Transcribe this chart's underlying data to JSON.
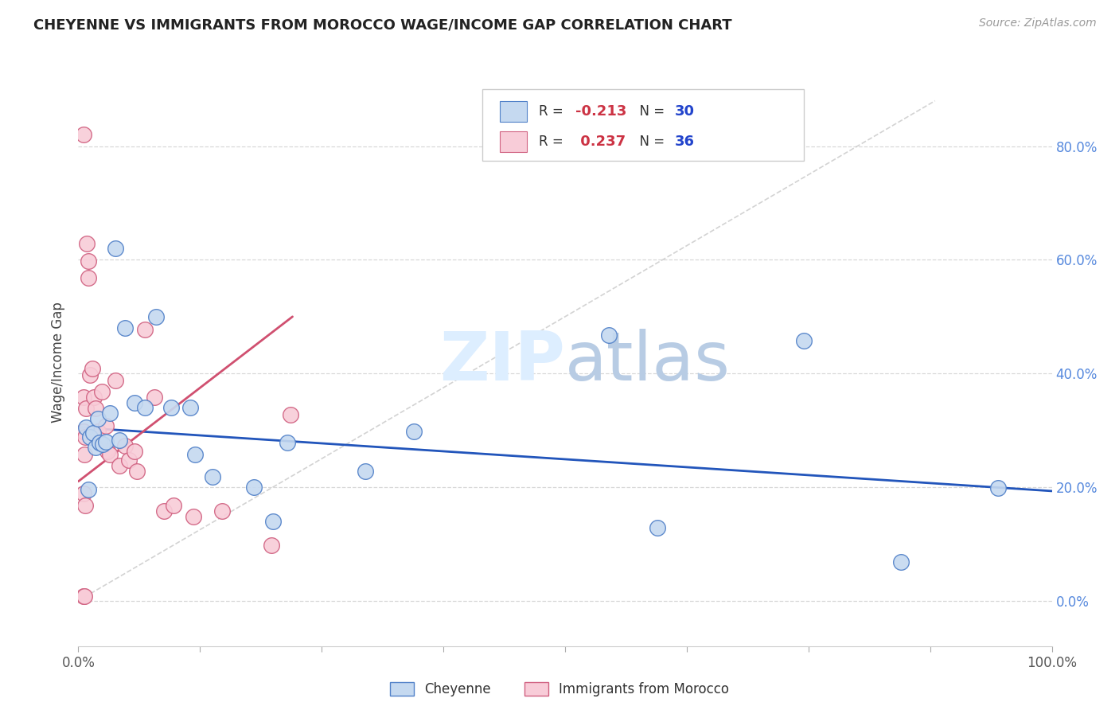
{
  "title": "CHEYENNE VS IMMIGRANTS FROM MOROCCO WAGE/INCOME GAP CORRELATION CHART",
  "source": "Source: ZipAtlas.com",
  "ylabel": "Wage/Income Gap",
  "legend_r_cheyenne": "-0.213",
  "legend_n_cheyenne": "30",
  "legend_r_morocco": "0.237",
  "legend_n_morocco": "36",
  "cheyenne_color": "#c5d9f0",
  "morocco_color": "#f8ccd8",
  "cheyenne_edge_color": "#5080c8",
  "morocco_edge_color": "#d06080",
  "cheyenne_line_color": "#2255bb",
  "morocco_line_color": "#d05070",
  "diagonal_color": "#c8c8c8",
  "bg_color": "#ffffff",
  "grid_color": "#d8d8d8",
  "watermark_color": "#ddeeff",
  "xlim": [
    0.0,
    1.0
  ],
  "ylim": [
    -0.08,
    0.92
  ],
  "ytick_positions": [
    0.0,
    0.2,
    0.4,
    0.6,
    0.8
  ],
  "ytick_labels_right": [
    "0.0%",
    "20.0%",
    "40.0%",
    "60.0%",
    "80.0%"
  ],
  "xtick_positions": [
    0.0,
    0.125,
    0.25,
    0.375,
    0.5,
    0.625,
    0.75,
    0.875,
    1.0
  ],
  "cheyenne_x": [
    0.008,
    0.01,
    0.012,
    0.015,
    0.018,
    0.02,
    0.022,
    0.025,
    0.028,
    0.032,
    0.038,
    0.042,
    0.048,
    0.058,
    0.068,
    0.08,
    0.095,
    0.115,
    0.12,
    0.138,
    0.18,
    0.2,
    0.215,
    0.295,
    0.345,
    0.545,
    0.595,
    0.745,
    0.845,
    0.945
  ],
  "cheyenne_y": [
    0.305,
    0.195,
    0.288,
    0.295,
    0.27,
    0.32,
    0.278,
    0.275,
    0.28,
    0.33,
    0.62,
    0.282,
    0.48,
    0.348,
    0.34,
    0.5,
    0.34,
    0.34,
    0.258,
    0.218,
    0.2,
    0.14,
    0.278,
    0.228,
    0.298,
    0.468,
    0.128,
    0.458,
    0.068,
    0.198
  ],
  "morocco_x": [
    0.005,
    0.005,
    0.005,
    0.005,
    0.005,
    0.006,
    0.006,
    0.007,
    0.007,
    0.008,
    0.009,
    0.01,
    0.01,
    0.012,
    0.014,
    0.016,
    0.018,
    0.02,
    0.024,
    0.028,
    0.03,
    0.032,
    0.038,
    0.042,
    0.048,
    0.052,
    0.058,
    0.06,
    0.068,
    0.078,
    0.088,
    0.098,
    0.118,
    0.148,
    0.198,
    0.218
  ],
  "morocco_y": [
    0.82,
    0.358,
    0.298,
    0.188,
    0.008,
    0.258,
    0.008,
    0.168,
    0.288,
    0.338,
    0.628,
    0.598,
    0.568,
    0.398,
    0.408,
    0.358,
    0.338,
    0.298,
    0.368,
    0.308,
    0.263,
    0.258,
    0.388,
    0.238,
    0.273,
    0.248,
    0.263,
    0.228,
    0.478,
    0.358,
    0.158,
    0.168,
    0.148,
    0.158,
    0.098,
    0.328
  ],
  "cheyenne_line_x": [
    0.0,
    1.0
  ],
  "cheyenne_line_y": [
    0.305,
    0.193
  ],
  "morocco_line_x": [
    0.0,
    0.22
  ],
  "morocco_line_y": [
    0.21,
    0.5
  ],
  "diag_line_x": [
    0.0,
    0.88
  ],
  "diag_line_y": [
    0.0,
    0.88
  ]
}
